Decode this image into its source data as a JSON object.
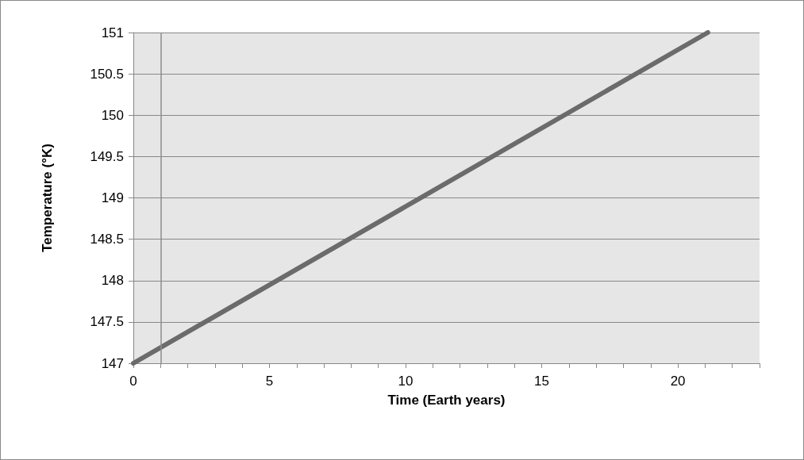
{
  "chart_data": {
    "type": "line",
    "xlabel": "Time (Earth years)",
    "ylabel": "Temperature (°K)",
    "x": [
      0,
      21.1
    ],
    "series": [
      {
        "color": "#6b6b6b",
        "values": [
          147,
          151
        ]
      }
    ],
    "xlim": [
      0,
      23
    ],
    "xticks": [
      0,
      {
        "value": 1,
        "label": null
      },
      {
        "value": 2,
        "label": null
      },
      {
        "value": 3,
        "label": null
      },
      {
        "value": 4,
        "label": null
      },
      5,
      {
        "value": 6,
        "label": null
      },
      {
        "value": 7,
        "label": null
      },
      {
        "value": 8,
        "label": null
      },
      {
        "value": 9,
        "label": null
      },
      10,
      {
        "value": 11,
        "label": null
      },
      {
        "value": 12,
        "label": null
      },
      {
        "value": 13,
        "label": null
      },
      {
        "value": 14,
        "label": null
      },
      15,
      {
        "value": 16,
        "label": null
      },
      {
        "value": 17,
        "label": null
      },
      {
        "value": 18,
        "label": null
      },
      {
        "value": 19,
        "label": null
      },
      20,
      {
        "value": 21,
        "label": null
      },
      {
        "value": 22,
        "label": null
      },
      {
        "value": 23,
        "label": null
      }
    ],
    "ylim": [
      147,
      151
    ],
    "yticks": [
      147,
      147.5,
      148,
      148.5,
      149,
      149.5,
      150,
      150.5,
      151
    ],
    "grid": "y",
    "marker": "none",
    "line_style": "solid",
    "ref_lines": [
      {
        "axis": "x",
        "value": 1,
        "label": null,
        "color": "#8c8c8c"
      }
    ]
  }
}
